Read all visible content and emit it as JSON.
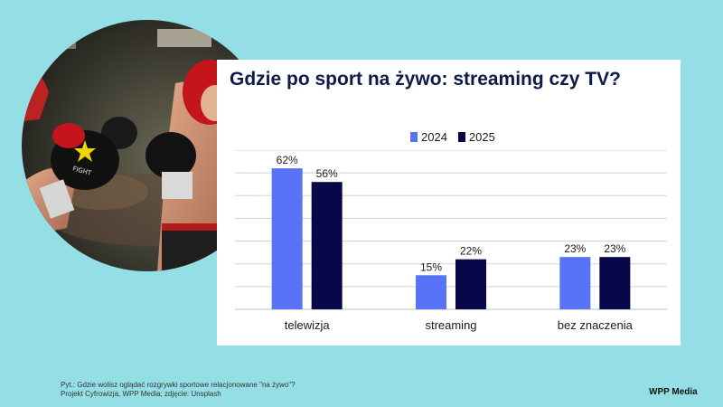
{
  "colors": {
    "background": "#94dfe5",
    "series_2024": "#5873f6",
    "series_2025": "#06084a",
    "title": "#0d1a4a"
  },
  "photo": {
    "icon": "kickboxing-photo"
  },
  "chart_data": {
    "type": "bar",
    "title": "Gdzie po sport na żywo: streaming czy TV?",
    "categories": [
      "telewizja",
      "streaming",
      "bez znaczenia"
    ],
    "series": [
      {
        "name": "2024",
        "values": [
          62,
          15,
          23
        ],
        "labels": [
          "62%",
          "15%",
          "23%"
        ],
        "color": "#5873f6"
      },
      {
        "name": "2025",
        "values": [
          56,
          22,
          23
        ],
        "labels": [
          "56%",
          "22%",
          "23%"
        ],
        "color": "#06084a"
      }
    ],
    "ylim": [
      0,
      70
    ],
    "grid": true,
    "legend_position": "top-center",
    "xlabel": "",
    "ylabel": ""
  },
  "footer": {
    "question": "Pyt.: Gdzie wolisz oglądać rozgrywki sportowe relacjonowane \"na żywo\"?",
    "source": "Projekt Cyfrowizja, WPP Media; zdjęcie: Unsplash",
    "brand": "WPP Media"
  }
}
